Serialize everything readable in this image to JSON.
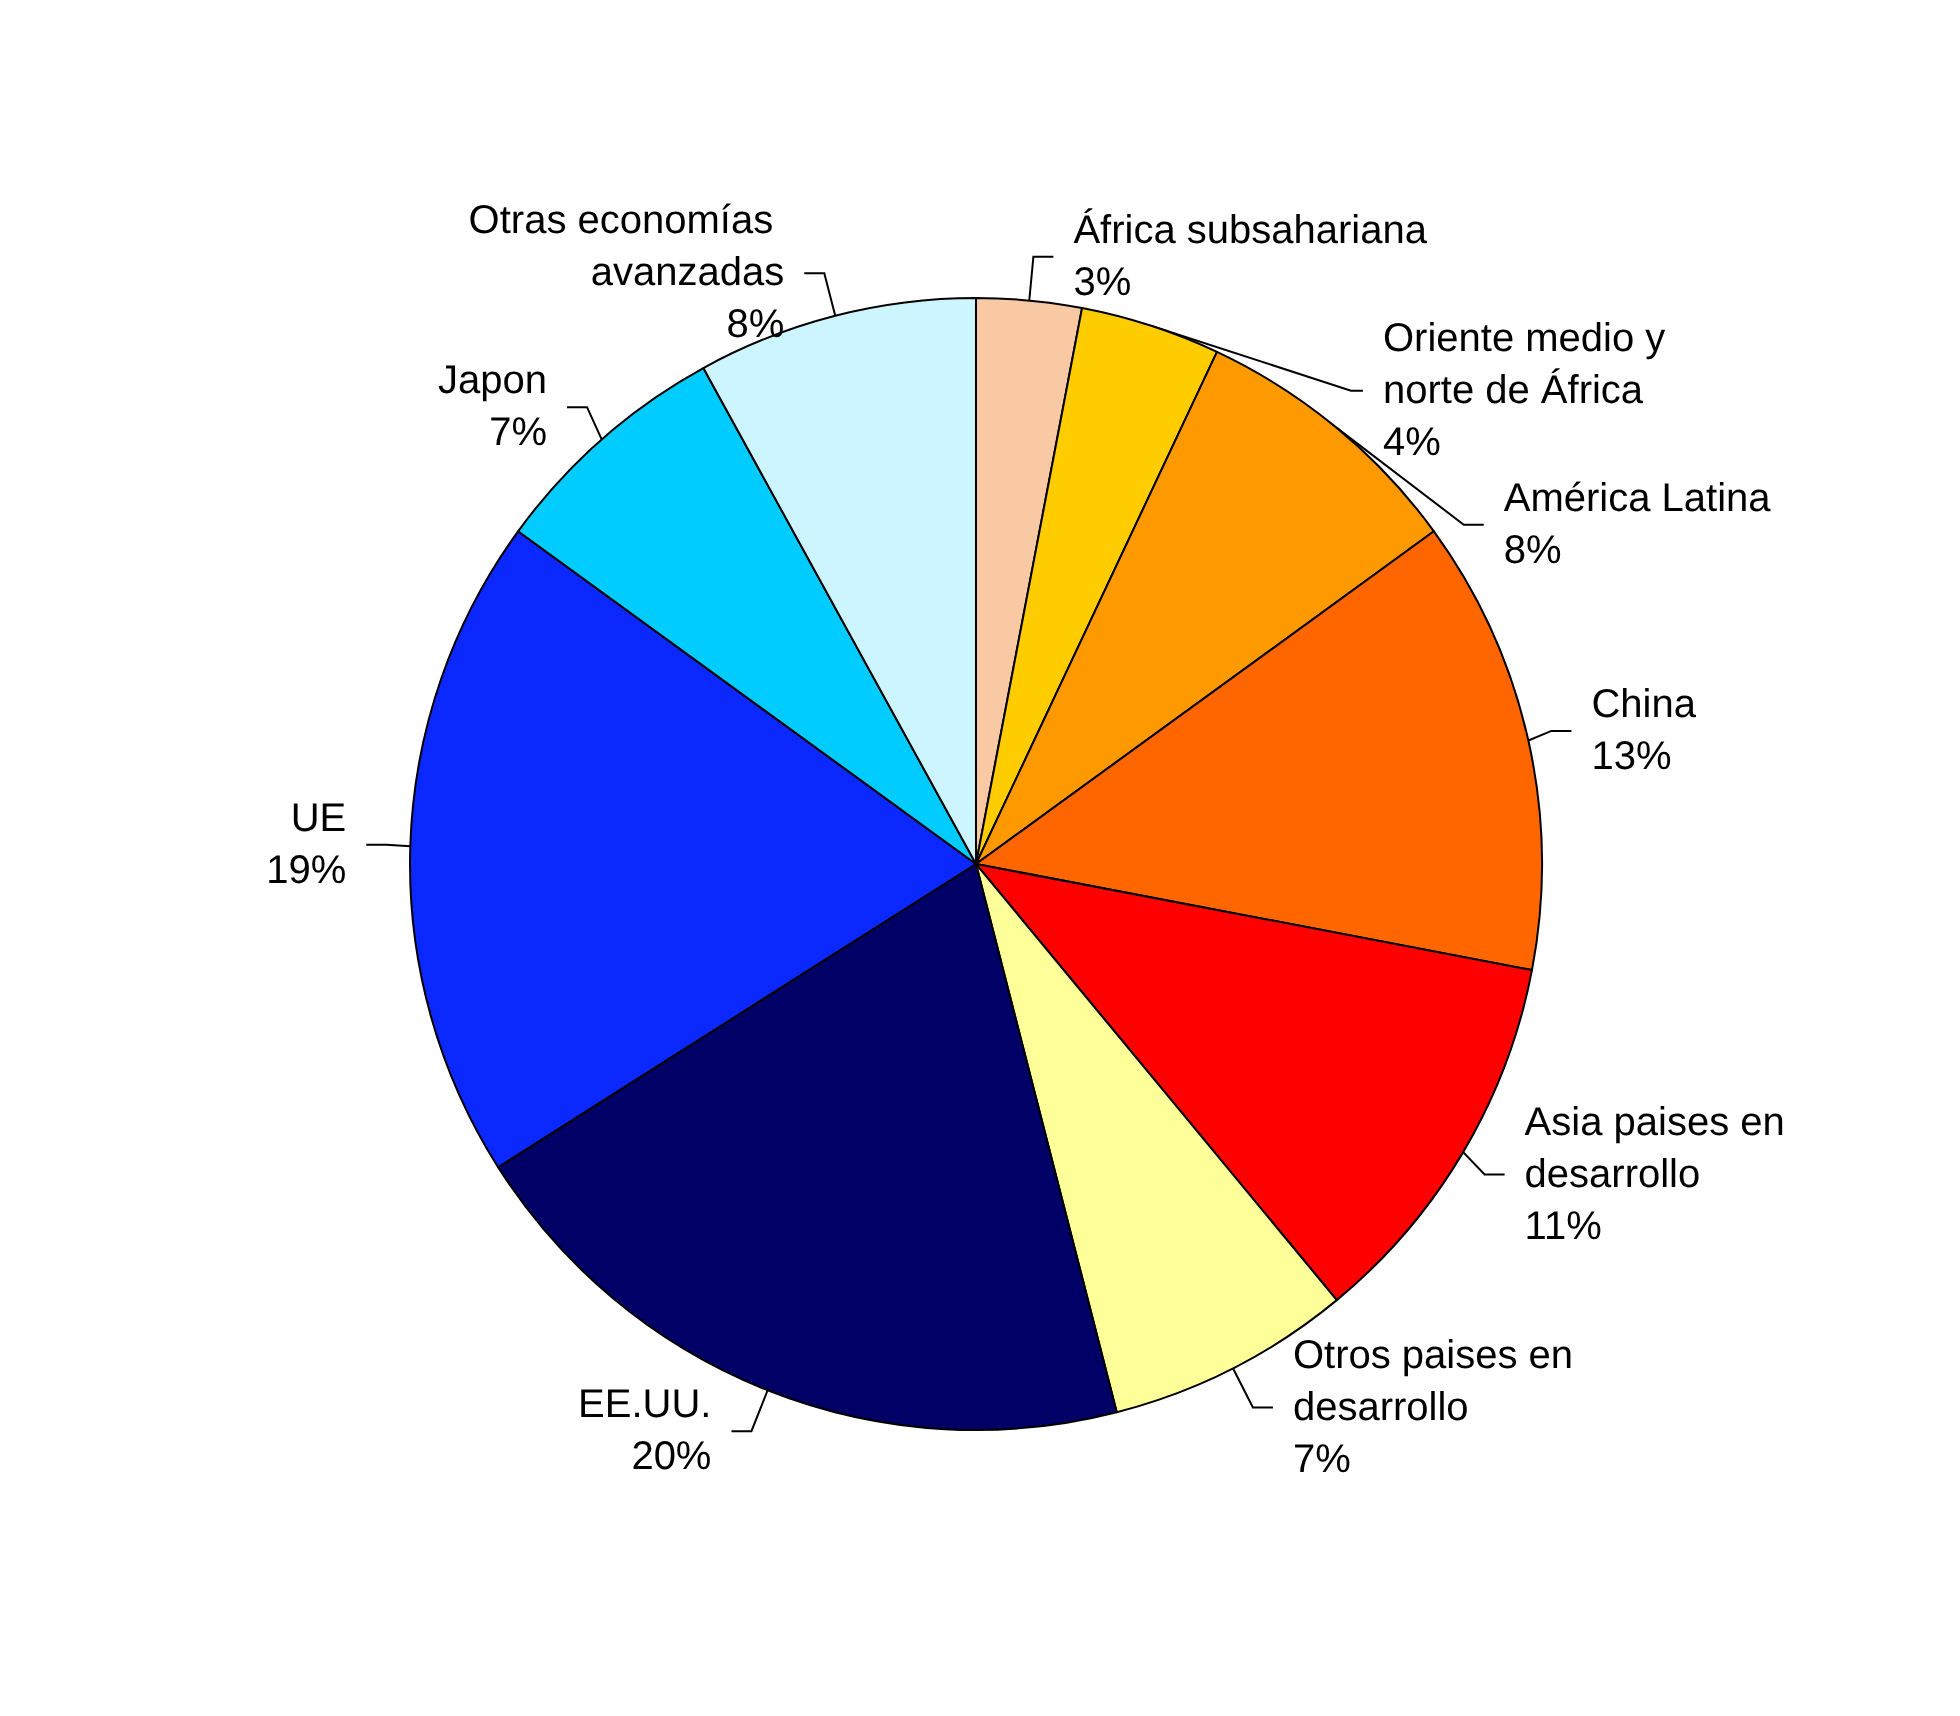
{
  "chart_data": {
    "type": "pie",
    "categories": [
      "África subsahariana",
      "Oriente medio y norte de África",
      "América Latina",
      "China",
      "Asia paises en desarrollo",
      "Otros paises en desarrollo",
      "EE.UU.",
      "UE",
      "Japon",
      "Otras economías avanzadas"
    ],
    "values": [
      3,
      4,
      8,
      13,
      11,
      7,
      20,
      19,
      7,
      8
    ],
    "value_labels": [
      "3%",
      "4%",
      "8%",
      "13%",
      "11%",
      "7%",
      "20%",
      "19%",
      "7%",
      "8%"
    ],
    "colors": [
      "#f9c9a3",
      "#ffcc00",
      "#ff9900",
      "#ff6600",
      "#ff0000",
      "#ffff99",
      "#000066",
      "#0a28ff",
      "#00ccff",
      "#ccf5ff"
    ],
    "legend": false
  }
}
